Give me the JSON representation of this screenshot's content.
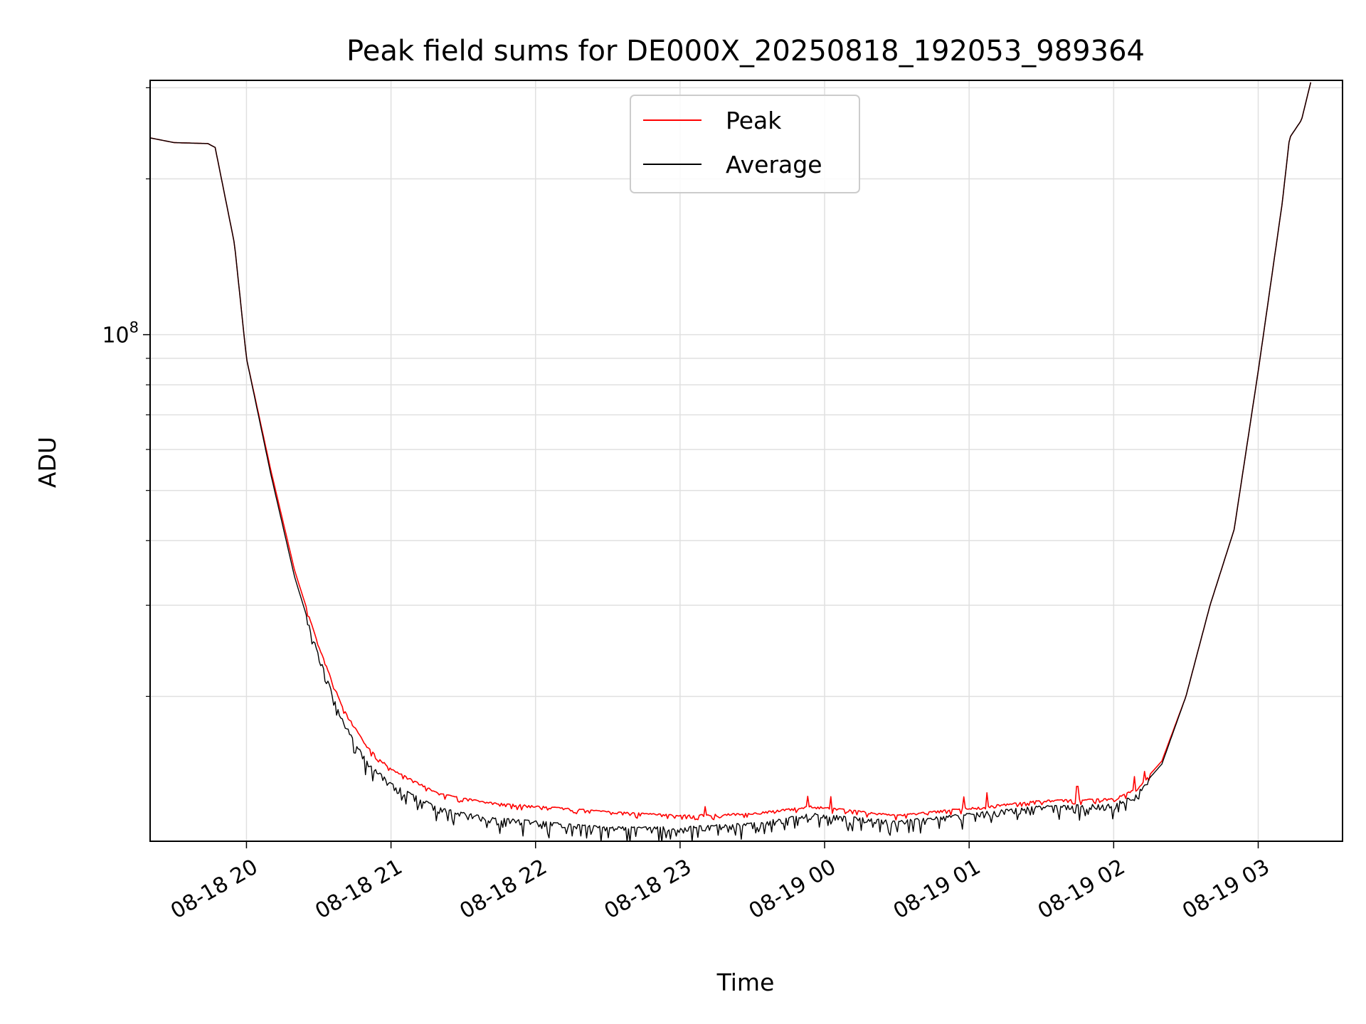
{
  "chart_data": {
    "type": "line",
    "title": "Peak field sums for DE000X_20250818_192053_989364",
    "xlabel": "Time",
    "ylabel": "ADU",
    "y_scale": "log",
    "grid": true,
    "legend_position": "top-center",
    "x_ticks": [
      "08-18 20",
      "08-18 21",
      "08-18 22",
      "08-18 23",
      "08-19 00",
      "08-19 01",
      "08-19 02",
      "08-19 03"
    ],
    "y_tick_major": {
      "base": "10",
      "exponent": "8",
      "value": 100000000
    },
    "xlim": [
      "2025-08-18 19:20",
      "2025-08-19 03:35"
    ],
    "ylim": [
      10500000,
      310000000
    ],
    "colors": {
      "peak": "#ff0000",
      "average": "#000000",
      "grid": "#e0e0e0"
    },
    "series": [
      {
        "name": "Peak",
        "color": "#ff0000",
        "x": [
          "2025-08-18 19:20",
          "2025-08-18 19:30",
          "2025-08-18 19:44",
          "2025-08-18 19:47",
          "2025-08-18 19:55",
          "2025-08-18 20:00",
          "2025-08-18 20:10",
          "2025-08-18 20:20",
          "2025-08-18 20:30",
          "2025-08-18 20:40",
          "2025-08-18 20:50",
          "2025-08-18 21:00",
          "2025-08-18 21:20",
          "2025-08-18 21:40",
          "2025-08-18 22:00",
          "2025-08-18 22:30",
          "2025-08-18 23:00",
          "2025-08-18 23:30",
          "2025-08-18 23:55",
          "2025-08-19 00:30",
          "2025-08-19 01:00",
          "2025-08-19 01:30",
          "2025-08-19 02:00",
          "2025-08-19 02:10",
          "2025-08-19 02:20",
          "2025-08-19 02:30",
          "2025-08-19 02:40",
          "2025-08-19 02:50",
          "2025-08-19 03:00",
          "2025-08-19 03:10",
          "2025-08-19 03:13",
          "2025-08-19 03:18",
          "2025-08-19 03:22"
        ],
        "values": [
          240000000,
          235000000,
          234000000,
          230000000,
          150000000,
          90000000,
          55000000,
          35000000,
          25000000,
          19000000,
          16000000,
          14500000,
          13000000,
          12500000,
          12300000,
          12000000,
          11800000,
          11900000,
          12300000,
          11800000,
          12200000,
          12600000,
          12700000,
          13300000,
          15000000,
          20000000,
          30000000,
          42000000,
          85000000,
          180000000,
          240000000,
          260000000,
          310000000
        ]
      },
      {
        "name": "Average",
        "color": "#000000",
        "x": [
          "2025-08-18 19:20",
          "2025-08-18 19:30",
          "2025-08-18 19:44",
          "2025-08-18 19:47",
          "2025-08-18 19:55",
          "2025-08-18 20:00",
          "2025-08-18 20:10",
          "2025-08-18 20:20",
          "2025-08-18 20:30",
          "2025-08-18 20:40",
          "2025-08-18 20:50",
          "2025-08-18 21:00",
          "2025-08-18 21:20",
          "2025-08-18 21:40",
          "2025-08-18 22:00",
          "2025-08-18 22:30",
          "2025-08-18 23:00",
          "2025-08-18 23:30",
          "2025-08-18 23:55",
          "2025-08-19 00:30",
          "2025-08-19 01:00",
          "2025-08-19 01:30",
          "2025-08-19 02:00",
          "2025-08-19 02:10",
          "2025-08-19 02:20",
          "2025-08-19 02:30",
          "2025-08-19 02:40",
          "2025-08-19 02:50",
          "2025-08-19 03:00",
          "2025-08-19 03:10",
          "2025-08-19 03:13",
          "2025-08-19 03:18",
          "2025-08-19 03:22"
        ],
        "values": [
          240000000,
          235000000,
          234000000,
          230000000,
          150000000,
          90000000,
          54000000,
          34000000,
          24000000,
          18000000,
          15000000,
          13600000,
          12200000,
          11700000,
          11500000,
          11200000,
          11200000,
          11400000,
          11900000,
          11500000,
          11900000,
          12300000,
          12400000,
          13100000,
          14800000,
          20000000,
          30000000,
          42000000,
          85000000,
          180000000,
          240000000,
          260000000,
          310000000
        ]
      }
    ]
  }
}
